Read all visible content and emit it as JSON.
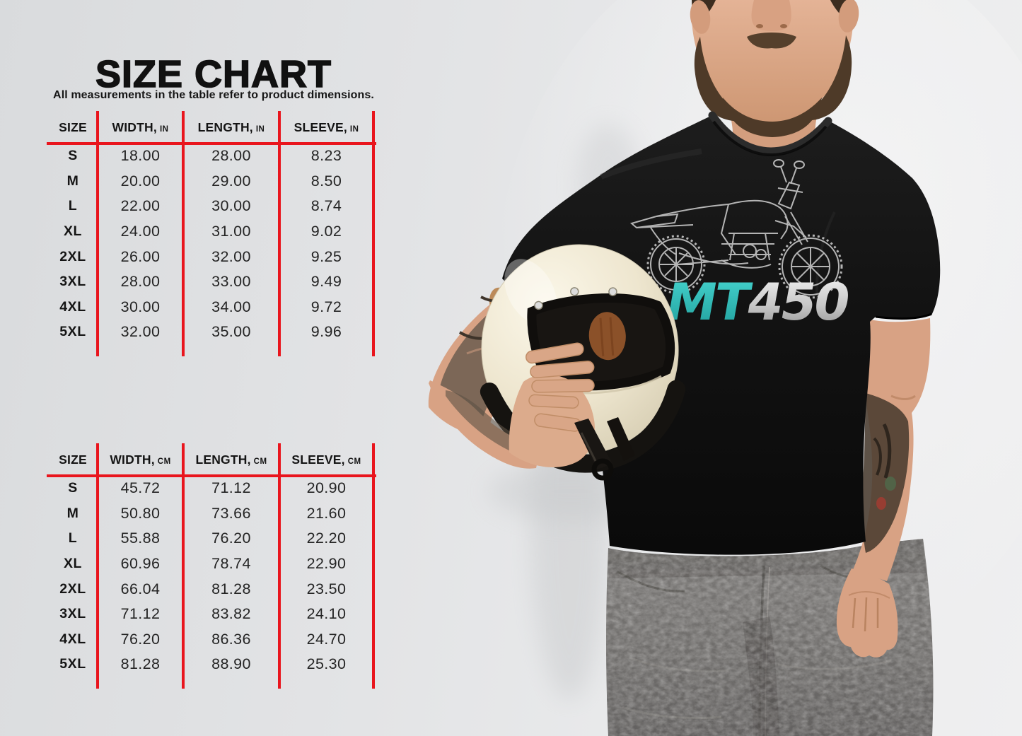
{
  "header": {
    "title": "SIZE CHART",
    "subtitle": "All measurements in the table refer to product dimensions."
  },
  "size_chart_in": {
    "col_size": "SIZE",
    "col_width": "WIDTH,",
    "col_length": "LENGTH,",
    "col_sleeve": "SLEEVE,",
    "unit": "IN",
    "rows": [
      {
        "size": "S",
        "width": "18.00",
        "length": "28.00",
        "sleeve": "8.23"
      },
      {
        "size": "M",
        "width": "20.00",
        "length": "29.00",
        "sleeve": "8.50"
      },
      {
        "size": "L",
        "width": "22.00",
        "length": "30.00",
        "sleeve": "8.74"
      },
      {
        "size": "XL",
        "width": "24.00",
        "length": "31.00",
        "sleeve": "9.02"
      },
      {
        "size": "2XL",
        "width": "26.00",
        "length": "32.00",
        "sleeve": "9.25"
      },
      {
        "size": "3XL",
        "width": "28.00",
        "length": "33.00",
        "sleeve": "9.49"
      },
      {
        "size": "4XL",
        "width": "30.00",
        "length": "34.00",
        "sleeve": "9.72"
      },
      {
        "size": "5XL",
        "width": "32.00",
        "length": "35.00",
        "sleeve": "9.96"
      }
    ]
  },
  "size_chart_cm": {
    "col_size": "SIZE",
    "col_width": "WIDTH,",
    "col_length": "LENGTH,",
    "col_sleeve": "SLEEVE,",
    "unit": "CM",
    "rows": [
      {
        "size": "S",
        "width": "45.72",
        "length": "71.12",
        "sleeve": "20.90"
      },
      {
        "size": "M",
        "width": "50.80",
        "length": "73.66",
        "sleeve": "21.60"
      },
      {
        "size": "L",
        "width": "55.88",
        "length": "76.20",
        "sleeve": "22.20"
      },
      {
        "size": "XL",
        "width": "60.96",
        "length": "78.74",
        "sleeve": "22.90"
      },
      {
        "size": "2XL",
        "width": "66.04",
        "length": "81.28",
        "sleeve": "23.50"
      },
      {
        "size": "3XL",
        "width": "71.12",
        "length": "83.82",
        "sleeve": "24.10"
      },
      {
        "size": "4XL",
        "width": "76.20",
        "length": "86.36",
        "sleeve": "24.70"
      },
      {
        "size": "5XL",
        "width": "81.28",
        "length": "88.90",
        "sleeve": "25.30"
      }
    ]
  },
  "tshirt": {
    "text_mt": "MT",
    "text_450": "450"
  },
  "colors": {
    "accent_red": "#e9151d",
    "title_text": "#111111",
    "table_text": "#242424",
    "background_gray": "#e4e5e7",
    "tee_black": "#111111",
    "graphic_teal": "#31bdba",
    "graphic_silver": "#c9c9c9",
    "helmet_cream": "#efe7d0",
    "jeans_gray": "#6f6d6b",
    "skin": "#d8a284"
  },
  "chart_data": [
    {
      "type": "table",
      "title": "SIZE CHART (inches)",
      "columns": [
        "SIZE",
        "WIDTH, IN",
        "LENGTH, IN",
        "SLEEVE, IN"
      ],
      "rows": [
        [
          "S",
          "18.00",
          "28.00",
          "8.23"
        ],
        [
          "M",
          "20.00",
          "29.00",
          "8.50"
        ],
        [
          "L",
          "22.00",
          "30.00",
          "8.74"
        ],
        [
          "XL",
          "24.00",
          "31.00",
          "9.02"
        ],
        [
          "2XL",
          "26.00",
          "32.00",
          "9.25"
        ],
        [
          "3XL",
          "28.00",
          "33.00",
          "9.49"
        ],
        [
          "4XL",
          "30.00",
          "34.00",
          "9.72"
        ],
        [
          "5XL",
          "32.00",
          "35.00",
          "9.96"
        ]
      ]
    },
    {
      "type": "table",
      "title": "SIZE CHART (centimeters)",
      "columns": [
        "SIZE",
        "WIDTH, CM",
        "LENGTH, CM",
        "SLEEVE, CM"
      ],
      "rows": [
        [
          "S",
          "45.72",
          "71.12",
          "20.90"
        ],
        [
          "M",
          "50.80",
          "73.66",
          "21.60"
        ],
        [
          "L",
          "55.88",
          "76.20",
          "22.20"
        ],
        [
          "XL",
          "60.96",
          "78.74",
          "22.90"
        ],
        [
          "2XL",
          "66.04",
          "81.28",
          "23.50"
        ],
        [
          "3XL",
          "71.12",
          "83.82",
          "24.10"
        ],
        [
          "4XL",
          "76.20",
          "86.36",
          "24.70"
        ],
        [
          "5XL",
          "81.28",
          "88.90",
          "25.30"
        ]
      ]
    }
  ]
}
